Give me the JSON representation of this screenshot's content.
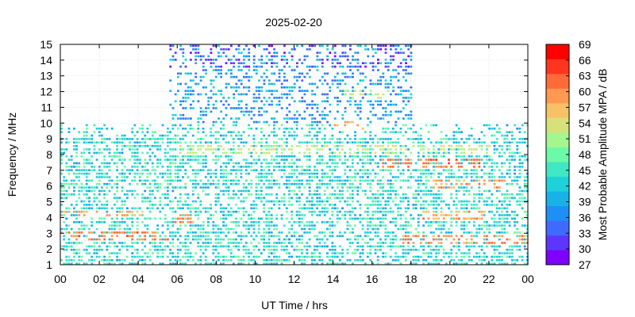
{
  "chart_data": {
    "type": "heatmap",
    "title": "2025-02-20",
    "xlabel": "UT Time / hrs",
    "ylabel": "Frequency / MHz",
    "colorbar_label": "Most Probable Amplitude MPA / dB",
    "xlim": [
      0,
      24
    ],
    "ylim": [
      1,
      15
    ],
    "x_ticks": [
      "00",
      "02",
      "04",
      "06",
      "08",
      "10",
      "12",
      "14",
      "16",
      "18",
      "20",
      "22",
      "00"
    ],
    "y_ticks": [
      "1",
      "2",
      "3",
      "4",
      "5",
      "6",
      "7",
      "8",
      "9",
      "10",
      "11",
      "12",
      "13",
      "14",
      "15"
    ],
    "colorbar_range": [
      27,
      69
    ],
    "colorbar_ticks": [
      "27",
      "30",
      "33",
      "36",
      "39",
      "42",
      "45",
      "48",
      "51",
      "54",
      "57",
      "60",
      "63",
      "66",
      "69"
    ],
    "colorbar_colors": [
      "#7f00ff",
      "#5e35ff",
      "#3f6aff",
      "#1e8ff5",
      "#17b2e8",
      "#1fd1d9",
      "#3fe8c3",
      "#6cf9a8",
      "#a4f78f",
      "#d6e17a",
      "#f7c266",
      "#ff9850",
      "#ff6a38",
      "#ff3520",
      "#ff0000"
    ],
    "grid": true,
    "occupancy_regions": [
      {
        "x": [
          0,
          24
        ],
        "y": [
          1,
          10
        ],
        "level": "medium"
      },
      {
        "x": [
          5.6,
          18
        ],
        "y": [
          10,
          15
        ],
        "level": "low"
      }
    ],
    "bands": [
      {
        "x": [
          0,
          5.5
        ],
        "y": 2.7,
        "mpa": 64
      },
      {
        "x": [
          17.5,
          24
        ],
        "y": 2.6,
        "mpa": 63
      },
      {
        "x": [
          0,
          4.5
        ],
        "y": 4.2,
        "mpa": 60
      },
      {
        "x": [
          18.5,
          22
        ],
        "y": 4.0,
        "mpa": 61
      },
      {
        "x": [
          16.5,
          21.5
        ],
        "y": 7.4,
        "mpa": 64
      },
      {
        "x": [
          6,
          22
        ],
        "y": 8.2,
        "mpa": 55
      },
      {
        "x": [
          19,
          23
        ],
        "y": 6.0,
        "mpa": 62
      },
      {
        "x": [
          5.8,
          6.8
        ],
        "y": 3.9,
        "mpa": 63
      },
      {
        "x": [
          14,
          16.5
        ],
        "y": 9.7,
        "mpa": 60
      },
      {
        "x": [
          14.5,
          17
        ],
        "y": 11.8,
        "mpa": 55
      }
    ]
  }
}
